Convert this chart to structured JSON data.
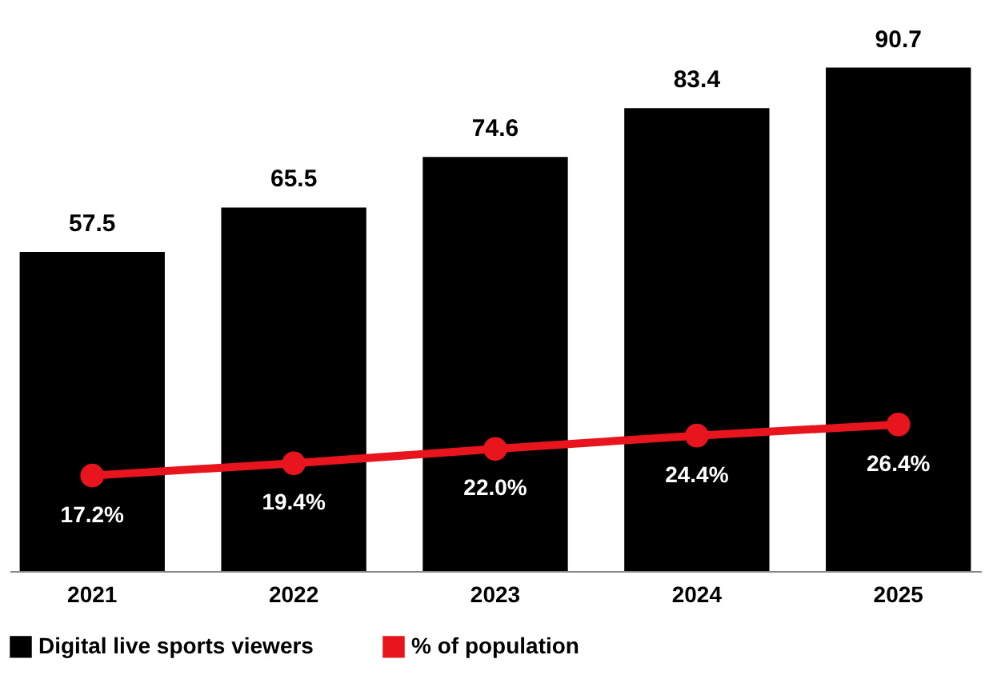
{
  "chart_data": {
    "type": "bar",
    "categories": [
      "2021",
      "2022",
      "2023",
      "2024",
      "2025"
    ],
    "series": [
      {
        "name": "Digital live sports viewers",
        "color": "#000000",
        "values": [
          57.5,
          65.5,
          74.6,
          83.4,
          90.7
        ],
        "value_labels": [
          "57.5",
          "65.5",
          "74.6",
          "83.4",
          "90.7"
        ]
      },
      {
        "name": "% of population",
        "type": "line",
        "color": "#e8141e",
        "values": [
          17.2,
          19.4,
          22.0,
          24.4,
          26.4
        ],
        "value_labels": [
          "17.2%",
          "19.4%",
          "22.0%",
          "24.4%",
          "26.4%"
        ],
        "marker": "circle"
      }
    ],
    "legend": "bottom left",
    "grid": false,
    "tick_labels": "x"
  }
}
